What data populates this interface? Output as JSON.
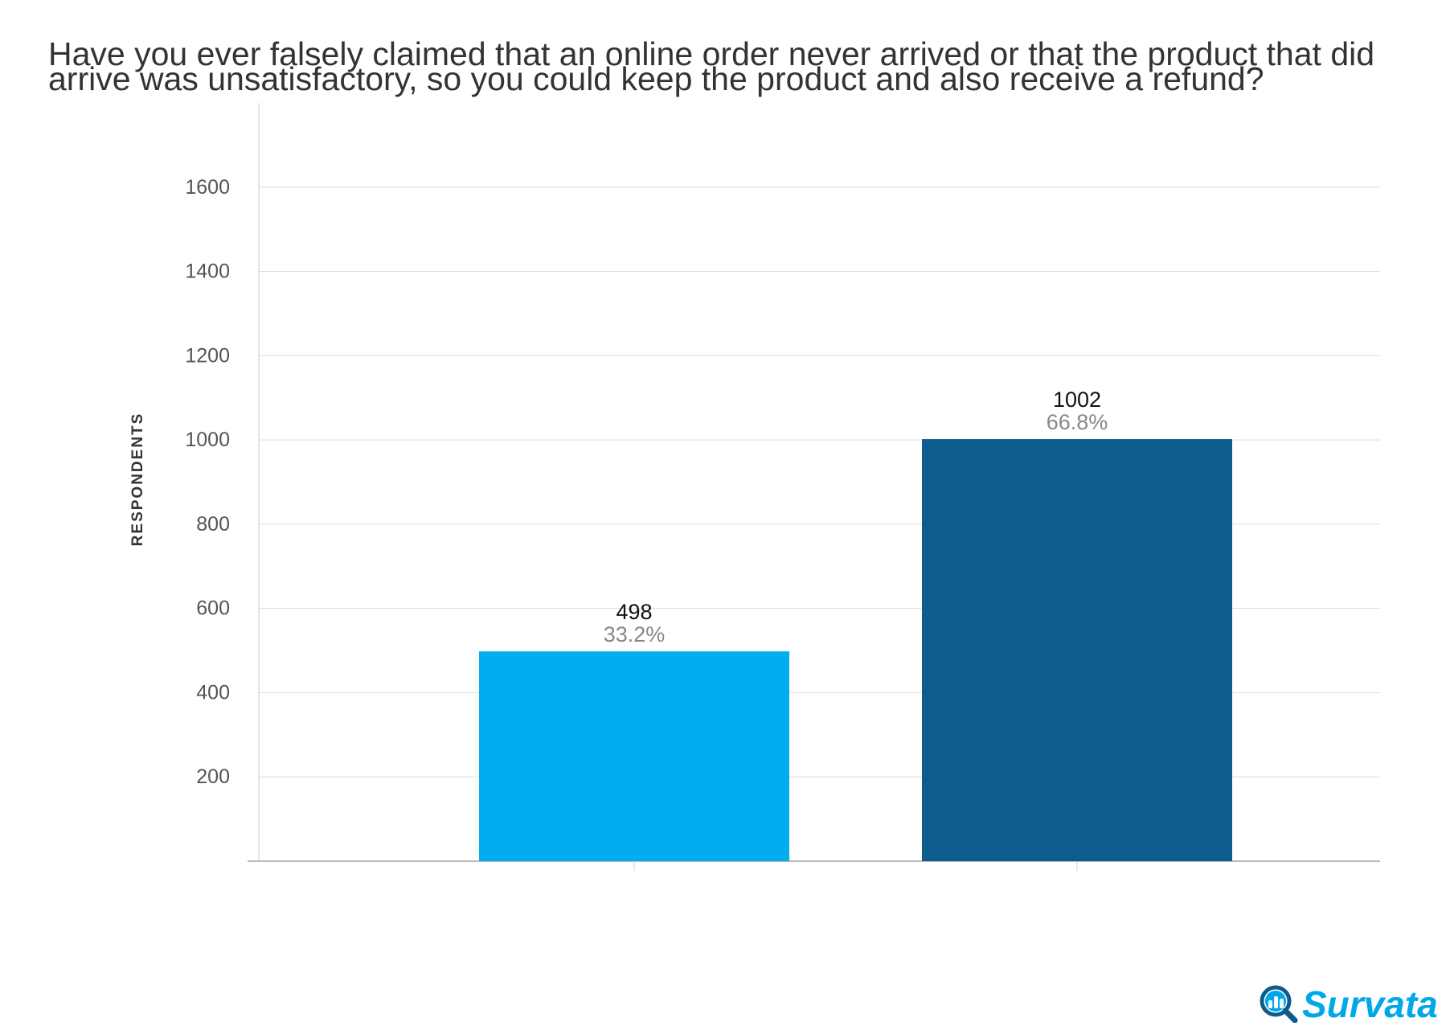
{
  "chart_data": {
    "type": "bar",
    "title_lines": [
      "Have you ever falsely claimed that an online order never arrived or that the product that did",
      "arrive was unsatisfactory, so you could keep the product and also receive a refund?"
    ],
    "ylabel": "RESPONDENTS",
    "xlabel": "",
    "ylim": [
      0,
      1800
    ],
    "yticks": [
      200,
      400,
      600,
      800,
      1000,
      1200,
      1400,
      1600
    ],
    "grid": true,
    "legend": "none",
    "categories": [
      "",
      ""
    ],
    "values": [
      498,
      1002
    ],
    "percent_labels": [
      "33.2%",
      "66.8%"
    ],
    "colors": [
      "#00adef",
      "#0e5b8e"
    ]
  },
  "brand": {
    "name": "Survata",
    "icon": "magnifier-people-icon",
    "color": "#00a8e8"
  }
}
